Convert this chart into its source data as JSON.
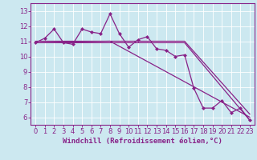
{
  "xlabel": "Windchill (Refroidissement éolien,°C)",
  "background_color": "#cce8f0",
  "grid_color": "#ffffff",
  "line_color": "#882288",
  "axis_line_color": "#882288",
  "xlim": [
    -0.5,
    23.5
  ],
  "ylim": [
    5.5,
    13.5
  ],
  "xticks": [
    0,
    1,
    2,
    3,
    4,
    5,
    6,
    7,
    8,
    9,
    10,
    11,
    12,
    13,
    14,
    15,
    16,
    17,
    18,
    19,
    20,
    21,
    22,
    23
  ],
  "yticks": [
    6,
    7,
    8,
    9,
    10,
    11,
    12,
    13
  ],
  "series1_x": [
    0,
    1,
    2,
    3,
    4,
    5,
    6,
    7,
    8,
    9,
    10,
    11,
    12,
    13,
    14,
    15,
    16,
    17,
    18,
    19,
    20,
    21,
    22,
    23
  ],
  "series1_y": [
    10.9,
    11.2,
    11.8,
    10.9,
    10.8,
    11.8,
    11.6,
    11.5,
    12.8,
    11.5,
    10.6,
    11.1,
    11.3,
    10.5,
    10.4,
    10.0,
    10.1,
    7.9,
    6.6,
    6.6,
    7.1,
    6.3,
    6.6,
    5.8
  ],
  "series2_x": [
    0,
    16,
    23
  ],
  "series2_y": [
    11.0,
    11.0,
    6.2
  ],
  "series3_x": [
    0,
    16,
    23
  ],
  "series3_y": [
    10.9,
    10.9,
    5.8
  ],
  "series4_x": [
    0,
    8,
    23
  ],
  "series4_y": [
    10.9,
    11.0,
    6.0
  ],
  "tick_fontsize": 6,
  "xlabel_fontsize": 6.5,
  "marker_size": 2.5,
  "linewidth": 0.9
}
